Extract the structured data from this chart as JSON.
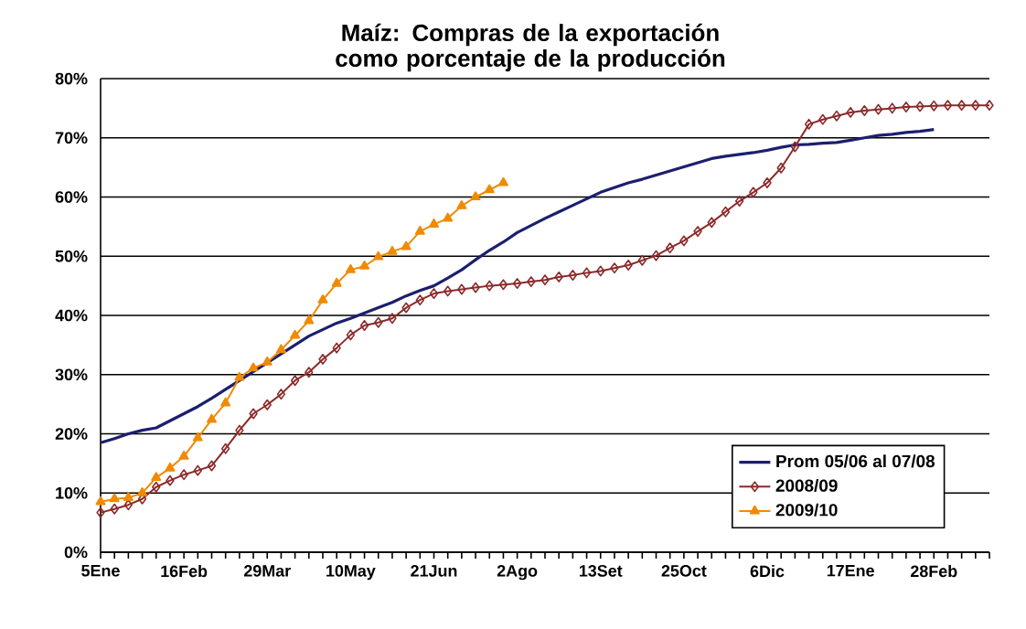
{
  "chart_data": {
    "type": "line",
    "title": "Maíz: Compras de la exportación como porcentaje de la producción",
    "categories": [
      "5Ene",
      null,
      null,
      null,
      null,
      null,
      "16Feb",
      null,
      null,
      null,
      null,
      null,
      "29Mar",
      null,
      null,
      null,
      null,
      null,
      "10May",
      null,
      null,
      null,
      null,
      null,
      "21Jun",
      null,
      null,
      null,
      null,
      null,
      "2Ago",
      null,
      null,
      null,
      null,
      null,
      "13Set",
      null,
      null,
      null,
      null,
      null,
      "25Oct",
      null,
      null,
      null,
      null,
      null,
      "6Dic",
      null,
      null,
      null,
      null,
      null,
      "17Ene",
      null,
      null,
      null,
      null,
      null,
      "28Feb",
      null,
      null,
      null,
      null
    ],
    "series": [
      {
        "name": "Prom 05/06 al 07/08",
        "color": "#1c1f6e",
        "marker": "none",
        "values": [
          18.5,
          19.2,
          20,
          20.6,
          21,
          22.2,
          23.4,
          24.6,
          26,
          27.5,
          29,
          30.5,
          32,
          33.5,
          35,
          36.5,
          37.6,
          38.7,
          39.5,
          40.4,
          41.3,
          42.2,
          43.3,
          44.2,
          45,
          46.3,
          47.7,
          49.4,
          51,
          52.4,
          54,
          55.2,
          56.4,
          57.5,
          58.6,
          59.7,
          60.8,
          61.6,
          62.4,
          63,
          63.7,
          64.4,
          65.1,
          65.8,
          66.5,
          66.9,
          67.2,
          67.5,
          67.9,
          68.4,
          68.8,
          68.9,
          69.1,
          69.2,
          69.6,
          70,
          70.4,
          70.6,
          70.9,
          71.1,
          71.4,
          null,
          null,
          null,
          null
        ]
      },
      {
        "name": "2008/09",
        "color": "#8b2a2a",
        "marker": "diamond",
        "values": [
          6.7,
          7.3,
          8,
          9,
          11,
          12.1,
          13.1,
          13.8,
          14.6,
          17.5,
          20.6,
          23.4,
          24.9,
          26.7,
          29,
          30.4,
          32.6,
          34.5,
          36.7,
          38.3,
          38.8,
          39.5,
          41.3,
          42.6,
          43.7,
          44.1,
          44.4,
          44.7,
          45,
          45.2,
          45.4,
          45.7,
          46,
          46.5,
          46.8,
          47.2,
          47.5,
          48,
          48.5,
          49.3,
          50.1,
          51.4,
          52.6,
          54.2,
          55.7,
          57.5,
          59.3,
          60.8,
          62.4,
          64.9,
          68.5,
          72.3,
          73.1,
          73.7,
          74.3,
          74.6,
          74.8,
          75,
          75.2,
          75.3,
          75.4,
          75.5,
          75.5,
          75.5,
          75.5
        ]
      },
      {
        "name": "2009/10",
        "color": "#f08a00",
        "marker": "triangle",
        "values": [
          8.5,
          9,
          9.2,
          10,
          12.6,
          14.2,
          16.2,
          19.3,
          22.4,
          25.2,
          29.5,
          31.1,
          32.1,
          34.2,
          36.6,
          39.1,
          42.6,
          45.4,
          47.7,
          48.3,
          49.9,
          50.8,
          51.6,
          54.2,
          55.4,
          56.4,
          58.5,
          60,
          61.2,
          62.4,
          null,
          null,
          null,
          null,
          null,
          null,
          null,
          null,
          null,
          null,
          null,
          null,
          null,
          null,
          null,
          null,
          null,
          null,
          null,
          null,
          null,
          null,
          null,
          null,
          null,
          null,
          null,
          null,
          null,
          null,
          null,
          null,
          null,
          null,
          null
        ]
      }
    ],
    "ylim": [
      0,
      80
    ],
    "yticks": [
      {
        "value": 0,
        "label": "0%"
      },
      {
        "value": 10,
        "label": "10%"
      },
      {
        "value": 20,
        "label": "20%"
      },
      {
        "value": 30,
        "label": "30%"
      },
      {
        "value": 40,
        "label": "40%"
      },
      {
        "value": 50,
        "label": "50%"
      },
      {
        "value": 60,
        "label": "60%"
      },
      {
        "value": 70,
        "label": "70%"
      },
      {
        "value": 80,
        "label": "80%"
      }
    ],
    "grid": "y",
    "legend": "bottom right"
  }
}
